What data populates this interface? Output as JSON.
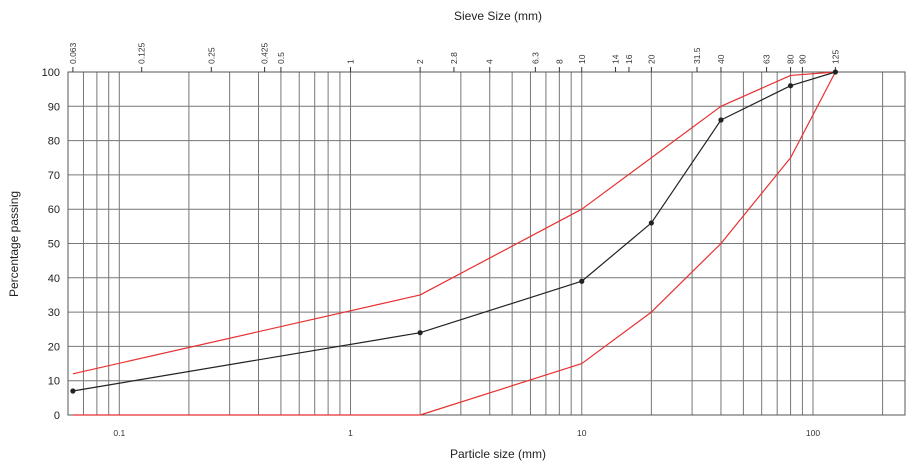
{
  "chart_data": {
    "type": "line",
    "title": "",
    "xlabel": "Particle size (mm)",
    "ylabel": "Percentage passing",
    "top_axis_label": "Sieve Size (mm)",
    "x_scale": "log",
    "xlim": [
      0.06,
      250
    ],
    "ylim": [
      0,
      100
    ],
    "grid": true,
    "y_ticks": [
      "0",
      "10",
      "20",
      "30",
      "40",
      "50",
      "60",
      "70",
      "80",
      "90",
      "100"
    ],
    "x_ticks": [
      {
        "value": 0.1,
        "label": "0.1"
      },
      {
        "value": 1,
        "label": "1"
      },
      {
        "value": 10,
        "label": "10"
      },
      {
        "value": 100,
        "label": "100"
      }
    ],
    "sieve_sizes": [
      {
        "value": 0.063,
        "label": "0.063"
      },
      {
        "value": 0.125,
        "label": "0.125"
      },
      {
        "value": 0.25,
        "label": "0.25"
      },
      {
        "value": 0.425,
        "label": "0.425"
      },
      {
        "value": 0.5,
        "label": "0.5"
      },
      {
        "value": 1,
        "label": "1"
      },
      {
        "value": 2,
        "label": "2"
      },
      {
        "value": 2.8,
        "label": "2.8"
      },
      {
        "value": 4,
        "label": "4"
      },
      {
        "value": 6.3,
        "label": "6.3"
      },
      {
        "value": 8,
        "label": "8"
      },
      {
        "value": 10,
        "label": "10"
      },
      {
        "value": 14,
        "label": "14"
      },
      {
        "value": 16,
        "label": "16"
      },
      {
        "value": 20,
        "label": "20"
      },
      {
        "value": 31.5,
        "label": "31.5"
      },
      {
        "value": 40,
        "label": "40"
      },
      {
        "value": 63,
        "label": "63"
      },
      {
        "value": 80,
        "label": "80"
      },
      {
        "value": 90,
        "label": "90"
      },
      {
        "value": 125,
        "label": "125"
      }
    ],
    "series": [
      {
        "color": "#e83030",
        "marker": false,
        "points": [
          [
            0.063,
            12
          ],
          [
            2,
            35
          ],
          [
            10,
            60
          ],
          [
            40,
            90
          ],
          [
            80,
            99
          ],
          [
            125,
            100
          ]
        ]
      },
      {
        "color": "#e83030",
        "marker": false,
        "points": [
          [
            0.063,
            0
          ],
          [
            2,
            0
          ],
          [
            10,
            15
          ],
          [
            20,
            30
          ],
          [
            40,
            50
          ],
          [
            80,
            75
          ],
          [
            125,
            100
          ]
        ]
      },
      {
        "color": "#222222",
        "marker": true,
        "points": [
          [
            0.063,
            7
          ],
          [
            2,
            24
          ],
          [
            10,
            39
          ],
          [
            20,
            56
          ],
          [
            40,
            86
          ],
          [
            80,
            96
          ],
          [
            125,
            100
          ]
        ]
      }
    ]
  }
}
